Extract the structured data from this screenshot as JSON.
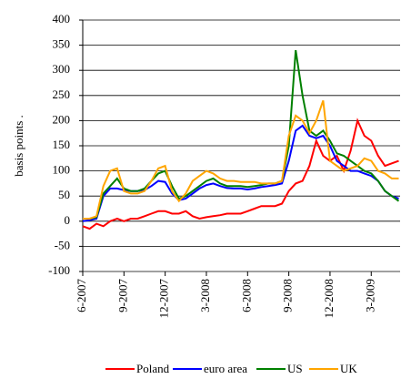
{
  "chart_data": {
    "type": "line",
    "y_label": "basis points .",
    "x": [
      0,
      0.5,
      1,
      1.5,
      2,
      2.5,
      3,
      3.5,
      4,
      4.5,
      5,
      5.5,
      6,
      6.5,
      7,
      7.5,
      8,
      8.5,
      9,
      9.5,
      10,
      10.5,
      11,
      11.5,
      12,
      12.5,
      13,
      13.5,
      14,
      14.5,
      15,
      15.5,
      16,
      16.5,
      17,
      17.5,
      18,
      18.5,
      19,
      19.5,
      20,
      20.5,
      21,
      21.5,
      22,
      22.5,
      23
    ],
    "xlim": [
      0,
      23.1
    ],
    "xticks": [
      {
        "value": 0,
        "label": "6-2007"
      },
      {
        "value": 3,
        "label": "9-2007"
      },
      {
        "value": 6,
        "label": "12-2007"
      },
      {
        "value": 9,
        "label": "3-2008"
      },
      {
        "value": 12,
        "label": "6-2008"
      },
      {
        "value": 15,
        "label": "9-2008"
      },
      {
        "value": 18,
        "label": "12-2008"
      },
      {
        "value": 21,
        "label": "3-2009"
      }
    ],
    "ylim": [
      -100,
      400
    ],
    "yticks": [
      -100,
      -50,
      0,
      50,
      100,
      150,
      200,
      250,
      300,
      350,
      400
    ],
    "grid": true,
    "legend": "bottom",
    "series": [
      {
        "name": "Poland",
        "color": "#ff0000",
        "values": [
          -10,
          -15,
          -5,
          -10,
          0,
          5,
          0,
          5,
          5,
          10,
          15,
          20,
          20,
          15,
          15,
          20,
          10,
          5,
          8,
          10,
          12,
          15,
          15,
          15,
          20,
          25,
          30,
          30,
          30,
          35,
          60,
          75,
          80,
          110,
          160,
          130,
          120,
          130,
          100,
          140,
          200,
          170,
          160,
          130,
          110,
          115,
          120
        ]
      },
      {
        "name": "euro area",
        "color": "#0000ff",
        "values": [
          0,
          2,
          5,
          50,
          65,
          65,
          62,
          60,
          60,
          62,
          70,
          80,
          78,
          55,
          42,
          45,
          55,
          65,
          72,
          75,
          70,
          66,
          65,
          65,
          63,
          65,
          68,
          70,
          72,
          75,
          120,
          180,
          190,
          170,
          165,
          170,
          150,
          120,
          110,
          100,
          100,
          95,
          90,
          80,
          60,
          50,
          45
        ]
      },
      {
        "name": "US",
        "color": "#008000",
        "values": [
          5,
          5,
          8,
          55,
          70,
          85,
          65,
          60,
          60,
          65,
          80,
          95,
          100,
          70,
          45,
          50,
          60,
          70,
          80,
          85,
          75,
          70,
          70,
          70,
          68,
          70,
          72,
          75,
          75,
          80,
          150,
          340,
          250,
          180,
          170,
          180,
          160,
          135,
          130,
          120,
          110,
          100,
          95,
          80,
          60,
          50,
          40
        ]
      },
      {
        "name": "UK",
        "color": "#ffa500",
        "values": [
          5,
          5,
          10,
          70,
          100,
          105,
          60,
          55,
          55,
          60,
          80,
          105,
          110,
          60,
          40,
          55,
          80,
          90,
          100,
          95,
          85,
          80,
          80,
          78,
          78,
          78,
          75,
          75,
          75,
          80,
          170,
          210,
          200,
          175,
          200,
          240,
          120,
          110,
          100,
          105,
          110,
          125,
          120,
          100,
          95,
          85,
          85
        ]
      }
    ]
  }
}
